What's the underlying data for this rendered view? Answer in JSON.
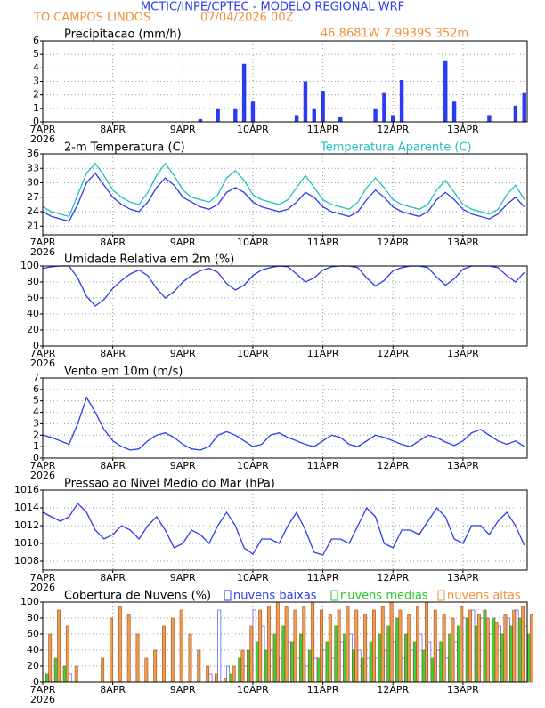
{
  "header": {
    "title": "MCTIC/INPE/CPTEC - MODELO REGIONAL WRF",
    "location": "TO CAMPOS LINDOS",
    "run": "07/04/2026 00Z",
    "coords": "46.8681W 7.9939S 352m"
  },
  "chart_data": [
    {
      "type": "bar",
      "title": "Precipitacao (mm/h)",
      "year": "2026",
      "color": "#2a3cf0",
      "x": [
        0,
        3,
        6,
        9,
        12,
        15,
        18,
        21,
        24,
        27,
        30,
        33,
        36,
        39,
        42,
        45,
        48,
        51,
        54,
        57,
        60,
        63,
        66,
        69,
        72,
        75,
        78,
        81,
        84,
        87,
        90,
        93,
        96,
        99,
        102,
        105,
        108,
        111,
        114,
        117,
        120,
        123,
        126,
        129,
        132,
        135,
        138,
        141,
        144,
        147,
        150,
        153,
        156,
        159,
        162,
        165
      ],
      "values": [
        0,
        0,
        0,
        0,
        0,
        0,
        0,
        0,
        0,
        0,
        0,
        0,
        0,
        0,
        0,
        0,
        0,
        0,
        0.2,
        0,
        1.0,
        0,
        1.0,
        4.3,
        1.5,
        0,
        0,
        0,
        0,
        0.5,
        3.0,
        1.0,
        2.3,
        0,
        0.4,
        0,
        0,
        0,
        1.0,
        2.2,
        0.5,
        3.1,
        0,
        0,
        0,
        0,
        4.5,
        1.5,
        0,
        0,
        0,
        0.5,
        0,
        0,
        1.2,
        2.2
      ],
      "xlim": [
        0,
        166
      ],
      "xticks": [
        {
          "value": 0,
          "label": "7APR"
        },
        {
          "value": 24,
          "label": "8APR"
        },
        {
          "value": 48,
          "label": "9APR"
        },
        {
          "value": 72,
          "label": "10APR"
        },
        {
          "value": 96,
          "label": "11APR"
        },
        {
          "value": 120,
          "label": "12APR"
        },
        {
          "value": 144,
          "label": "13APR"
        }
      ],
      "ylim": [
        0,
        6
      ],
      "yticks": [
        0,
        1,
        2,
        3,
        4,
        5,
        6
      ],
      "grid": true
    },
    {
      "type": "line",
      "title": "2-m Temperatura (C)",
      "year": "2026",
      "x": [
        0,
        3,
        6,
        9,
        12,
        15,
        18,
        21,
        24,
        27,
        30,
        33,
        36,
        39,
        42,
        45,
        48,
        51,
        54,
        57,
        60,
        63,
        66,
        69,
        72,
        75,
        78,
        81,
        84,
        87,
        90,
        93,
        96,
        99,
        102,
        105,
        108,
        111,
        114,
        117,
        120,
        123,
        126,
        129,
        132,
        135,
        138,
        141,
        144,
        147,
        150,
        153,
        156,
        159,
        162,
        165
      ],
      "series": [
        {
          "color": "#2a3cf0",
          "values": [
            24,
            23,
            22.5,
            22,
            25.5,
            30,
            32,
            29.5,
            27,
            25.5,
            24.5,
            24,
            26,
            29,
            31,
            29.5,
            27,
            26,
            25,
            24.5,
            25.5,
            28,
            29,
            28,
            26,
            25,
            24.5,
            24,
            24.5,
            26,
            28,
            27,
            25,
            24,
            23.5,
            23,
            24,
            26.5,
            28.5,
            27,
            25,
            24,
            23.5,
            23,
            24,
            26.5,
            28,
            26.5,
            24.5,
            23.5,
            23,
            22.5,
            23.5,
            25.5,
            27,
            25
          ]
        },
        {
          "name": "Temperatura Aparente (C)",
          "color": "#20c0c0",
          "values": [
            25,
            24,
            23.5,
            23,
            27.5,
            32,
            34,
            31.5,
            28.5,
            27,
            26,
            25.5,
            28,
            31.5,
            34,
            31.5,
            28.5,
            27,
            26.5,
            26,
            27.5,
            31,
            32.5,
            30.5,
            27.5,
            26.5,
            26,
            25.5,
            26.5,
            29,
            31.5,
            29,
            26.5,
            25.5,
            25,
            24.5,
            26,
            29,
            31,
            29,
            26.5,
            25.5,
            25,
            24.5,
            25.5,
            28.5,
            30.5,
            28,
            25.5,
            24.5,
            24,
            23.5,
            24.5,
            27.5,
            29.5,
            26.5
          ]
        }
      ],
      "xlim": [
        0,
        166
      ],
      "xticks": [
        {
          "value": 0,
          "label": "7APR"
        },
        {
          "value": 24,
          "label": "8APR"
        },
        {
          "value": 48,
          "label": "9APR"
        },
        {
          "value": 72,
          "label": "10APR"
        },
        {
          "value": 96,
          "label": "11APR"
        },
        {
          "value": 120,
          "label": "12APR"
        },
        {
          "value": 144,
          "label": "13APR"
        }
      ],
      "ylim": [
        19.2,
        36
      ],
      "yticks": [
        21,
        24,
        27,
        30,
        33,
        36
      ],
      "grid": true
    },
    {
      "type": "line",
      "title": "Umidade Relativa em 2m (%)",
      "year": "2026",
      "color": "#2a3cf0",
      "x": [
        0,
        3,
        6,
        9,
        12,
        15,
        18,
        21,
        24,
        27,
        30,
        33,
        36,
        39,
        42,
        45,
        48,
        51,
        54,
        57,
        60,
        63,
        66,
        69,
        72,
        75,
        78,
        81,
        84,
        87,
        90,
        93,
        96,
        99,
        102,
        105,
        108,
        111,
        114,
        117,
        120,
        123,
        126,
        129,
        132,
        135,
        138,
        141,
        144,
        147,
        150,
        153,
        156,
        159,
        162,
        165
      ],
      "values": [
        97,
        99,
        100,
        100,
        85,
        62,
        50,
        58,
        72,
        82,
        90,
        95,
        88,
        72,
        60,
        68,
        80,
        88,
        94,
        97,
        92,
        78,
        70,
        76,
        88,
        95,
        98,
        100,
        99,
        90,
        80,
        85,
        95,
        99,
        100,
        100,
        98,
        85,
        75,
        82,
        94,
        98,
        100,
        100,
        98,
        86,
        76,
        84,
        96,
        100,
        100,
        100,
        98,
        88,
        80,
        92
      ],
      "xlim": [
        0,
        166
      ],
      "xticks": [
        {
          "value": 0,
          "label": "7APR"
        },
        {
          "value": 24,
          "label": "8APR"
        },
        {
          "value": 48,
          "label": "9APR"
        },
        {
          "value": 72,
          "label": "10APR"
        },
        {
          "value": 96,
          "label": "11APR"
        },
        {
          "value": 120,
          "label": "12APR"
        },
        {
          "value": 144,
          "label": "13APR"
        }
      ],
      "ylim": [
        0,
        100
      ],
      "yticks": [
        0,
        20,
        40,
        60,
        80,
        100
      ],
      "grid": true
    },
    {
      "type": "line",
      "title": "Vento em 10m (m/s)",
      "year": "2026",
      "color": "#2a3cf0",
      "x": [
        0,
        3,
        6,
        9,
        12,
        15,
        18,
        21,
        24,
        27,
        30,
        33,
        36,
        39,
        42,
        45,
        48,
        51,
        54,
        57,
        60,
        63,
        66,
        69,
        72,
        75,
        78,
        81,
        84,
        87,
        90,
        93,
        96,
        99,
        102,
        105,
        108,
        111,
        114,
        117,
        120,
        123,
        126,
        129,
        132,
        135,
        138,
        141,
        144,
        147,
        150,
        153,
        156,
        159,
        162,
        165
      ],
      "values": [
        2,
        1.8,
        1.5,
        1.2,
        3,
        5.3,
        4,
        2.5,
        1.5,
        1,
        0.7,
        0.8,
        1.5,
        2,
        2.2,
        1.8,
        1.2,
        0.8,
        0.7,
        1,
        2,
        2.3,
        2,
        1.5,
        1,
        1.2,
        2,
        2.2,
        1.8,
        1.5,
        1.2,
        1,
        1.5,
        2,
        1.8,
        1.2,
        1,
        1.5,
        2,
        1.8,
        1.5,
        1.2,
        1,
        1.5,
        2,
        1.8,
        1.4,
        1.1,
        1.5,
        2.2,
        2.5,
        2,
        1.5,
        1.2,
        1.5,
        1
      ],
      "xlim": [
        0,
        166
      ],
      "xticks": [
        {
          "value": 0,
          "label": "7APR"
        },
        {
          "value": 24,
          "label": "8APR"
        },
        {
          "value": 48,
          "label": "9APR"
        },
        {
          "value": 72,
          "label": "10APR"
        },
        {
          "value": 96,
          "label": "11APR"
        },
        {
          "value": 120,
          "label": "12APR"
        },
        {
          "value": 144,
          "label": "13APR"
        }
      ],
      "ylim": [
        0,
        7
      ],
      "yticks": [
        0,
        1,
        2,
        3,
        4,
        5,
        6,
        7
      ],
      "grid": true
    },
    {
      "type": "line",
      "title": "Pressao ao Nivel Medio do Mar (hPa)",
      "year": "2026",
      "color": "#2a3cf0",
      "x": [
        0,
        3,
        6,
        9,
        12,
        15,
        18,
        21,
        24,
        27,
        30,
        33,
        36,
        39,
        42,
        45,
        48,
        51,
        54,
        57,
        60,
        63,
        66,
        69,
        72,
        75,
        78,
        81,
        84,
        87,
        90,
        93,
        96,
        99,
        102,
        105,
        108,
        111,
        114,
        117,
        120,
        123,
        126,
        129,
        132,
        135,
        138,
        141,
        144,
        147,
        150,
        153,
        156,
        159,
        162,
        165
      ],
      "values": [
        1013.5,
        1013,
        1012.5,
        1013,
        1014.5,
        1013.5,
        1011.5,
        1010.5,
        1011,
        1012,
        1011.5,
        1010.5,
        1012,
        1013,
        1011.5,
        1009.5,
        1010,
        1011.5,
        1011,
        1010,
        1012,
        1013.5,
        1012,
        1009.5,
        1008.8,
        1010.5,
        1010.5,
        1010,
        1012,
        1013.5,
        1011.5,
        1009,
        1008.7,
        1010.5,
        1010.5,
        1010,
        1012,
        1014,
        1013,
        1010,
        1009.5,
        1011.5,
        1011.5,
        1011,
        1012.5,
        1014,
        1013,
        1010.5,
        1010,
        1012,
        1012,
        1011,
        1012.5,
        1013.5,
        1012,
        1009.8
      ],
      "xlim": [
        0,
        166
      ],
      "xticks": [
        {
          "value": 0,
          "label": "7APR"
        },
        {
          "value": 24,
          "label": "8APR"
        },
        {
          "value": 48,
          "label": "9APR"
        },
        {
          "value": 72,
          "label": "10APR"
        },
        {
          "value": 96,
          "label": "11APR"
        },
        {
          "value": 120,
          "label": "12APR"
        },
        {
          "value": 144,
          "label": "13APR"
        }
      ],
      "ylim": [
        1007,
        1016
      ],
      "yticks": [
        1008,
        1010,
        1012,
        1014,
        1016
      ],
      "grid": true
    },
    {
      "type": "bar",
      "title": "Cobertura de Nuvens (%)",
      "year": "2026",
      "x": [
        0,
        3,
        6,
        9,
        12,
        15,
        18,
        21,
        24,
        27,
        30,
        33,
        36,
        39,
        42,
        45,
        48,
        51,
        54,
        57,
        60,
        63,
        66,
        69,
        72,
        75,
        78,
        81,
        84,
        87,
        90,
        93,
        96,
        99,
        102,
        105,
        108,
        111,
        114,
        117,
        120,
        123,
        126,
        129,
        132,
        135,
        138,
        141,
        144,
        147,
        150,
        153,
        156,
        159,
        162,
        165
      ],
      "series": [
        {
          "name": "nuvens baixas",
          "color": "#2a3cf0",
          "values": [
            0,
            0,
            0,
            10,
            0,
            0,
            0,
            0,
            0,
            0,
            0,
            0,
            0,
            0,
            0,
            0,
            0,
            0,
            0,
            10,
            90,
            20,
            0,
            20,
            90,
            70,
            40,
            30,
            50,
            30,
            20,
            30,
            40,
            30,
            50,
            60,
            40,
            30,
            30,
            40,
            50,
            30,
            40,
            60,
            50,
            40,
            30,
            50,
            80,
            90,
            80,
            60,
            70,
            80,
            90,
            70
          ]
        },
        {
          "name": "nuvens medias",
          "color": "#22cc22",
          "values": [
            10,
            30,
            20,
            0,
            0,
            0,
            0,
            0,
            0,
            0,
            0,
            0,
            0,
            0,
            0,
            0,
            0,
            0,
            0,
            0,
            0,
            10,
            30,
            40,
            50,
            40,
            60,
            70,
            50,
            60,
            40,
            30,
            50,
            70,
            60,
            40,
            30,
            50,
            60,
            70,
            80,
            60,
            50,
            40,
            30,
            50,
            60,
            70,
            80,
            70,
            90,
            80,
            60,
            70,
            80,
            60
          ]
        },
        {
          "name": "nuvens altas",
          "color": "#f0903c",
          "values": [
            60,
            90,
            70,
            20,
            0,
            0,
            30,
            80,
            95,
            85,
            60,
            30,
            40,
            70,
            80,
            90,
            60,
            40,
            20,
            10,
            5,
            20,
            40,
            70,
            90,
            95,
            100,
            95,
            90,
            95,
            100,
            90,
            85,
            90,
            95,
            90,
            85,
            90,
            95,
            100,
            90,
            85,
            95,
            100,
            90,
            85,
            80,
            95,
            90,
            85,
            80,
            75,
            85,
            90,
            95,
            85
          ]
        }
      ],
      "xlim": [
        0,
        166
      ],
      "xticks": [
        {
          "value": 0,
          "label": "7APR"
        },
        {
          "value": 24,
          "label": "8APR"
        },
        {
          "value": 48,
          "label": "9APR"
        },
        {
          "value": 72,
          "label": "10APR"
        },
        {
          "value": 96,
          "label": "11APR"
        },
        {
          "value": 120,
          "label": "12APR"
        },
        {
          "value": 144,
          "label": "13APR"
        }
      ],
      "ylim": [
        0,
        100
      ],
      "yticks": [
        0,
        20,
        40,
        60,
        80,
        100
      ],
      "grid": true
    }
  ]
}
